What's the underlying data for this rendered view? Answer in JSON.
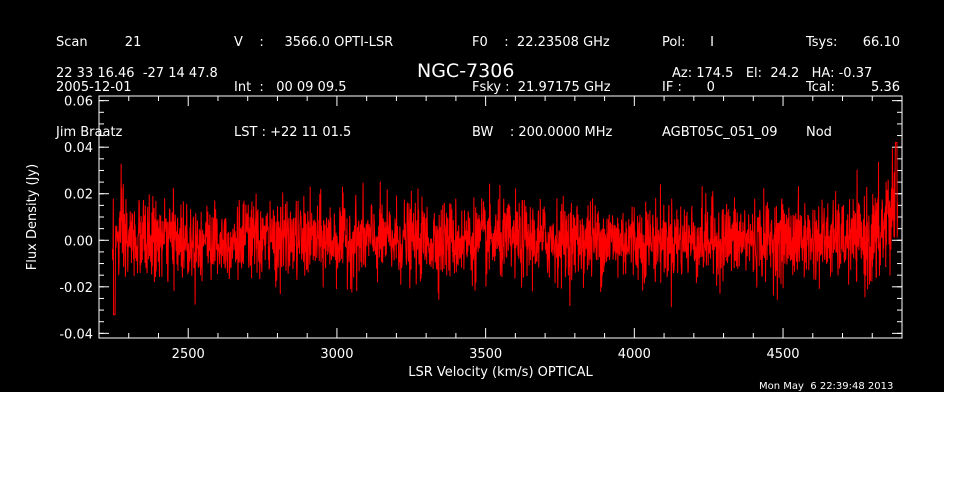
{
  "header": {
    "col1": [
      "Scan         21",
      "2005-12-01",
      "Jim Braatz"
    ],
    "col2": [
      "V    :     3566.0 OPTI-LSR",
      "Int  :   00 09 09.5",
      "LST : +22 11 01.5"
    ],
    "col3": [
      "F0    :  22.23508 GHz",
      "Fsky :  21.97175 GHz",
      "BW    : 200.0000 MHz"
    ],
    "col4": [
      "Pol:      I",
      "IF :      0",
      "AGBT05C_051_09"
    ],
    "col5_labels": [
      "Tsys:",
      "Tcal:",
      "Nod"
    ],
    "col5_values": [
      "66.10",
      "5.36",
      ""
    ],
    "coords": "22 33 16.46  -27 14 47.8",
    "source": "NGC-7306",
    "azel": "Az: 174.5   El:  24.2   HA: -0.37"
  },
  "timestamp": "Mon May  6 22:39:48 2013",
  "chart_data": {
    "type": "line",
    "xlabel": "LSR Velocity (km/s) OPTICAL",
    "ylabel": "Flux Density (Jy)",
    "xlim": [
      2200,
      4900
    ],
    "ylim": [
      -0.042,
      0.062
    ],
    "x_ticks": [
      2500,
      3000,
      3500,
      4000,
      4500
    ],
    "y_ticks": [
      -0.04,
      -0.02,
      0.0,
      0.02,
      0.04,
      0.06
    ],
    "y_tick_labels": [
      "-0.04",
      "-0.02",
      "0.00",
      "0.02",
      "0.04",
      "0.06"
    ],
    "x_tick_labels": [
      "2500",
      "3000",
      "3500",
      "4000",
      "4500"
    ],
    "series_color": "#ff0000",
    "series": [
      {
        "x_start": 2245,
        "x_end": 4885,
        "noise_sigma": 0.0085,
        "mean": 0.0,
        "edge_low": {
          "x": 2252,
          "y": -0.032
        },
        "edge_high": {
          "x": 4880,
          "y": 0.042
        }
      }
    ]
  }
}
